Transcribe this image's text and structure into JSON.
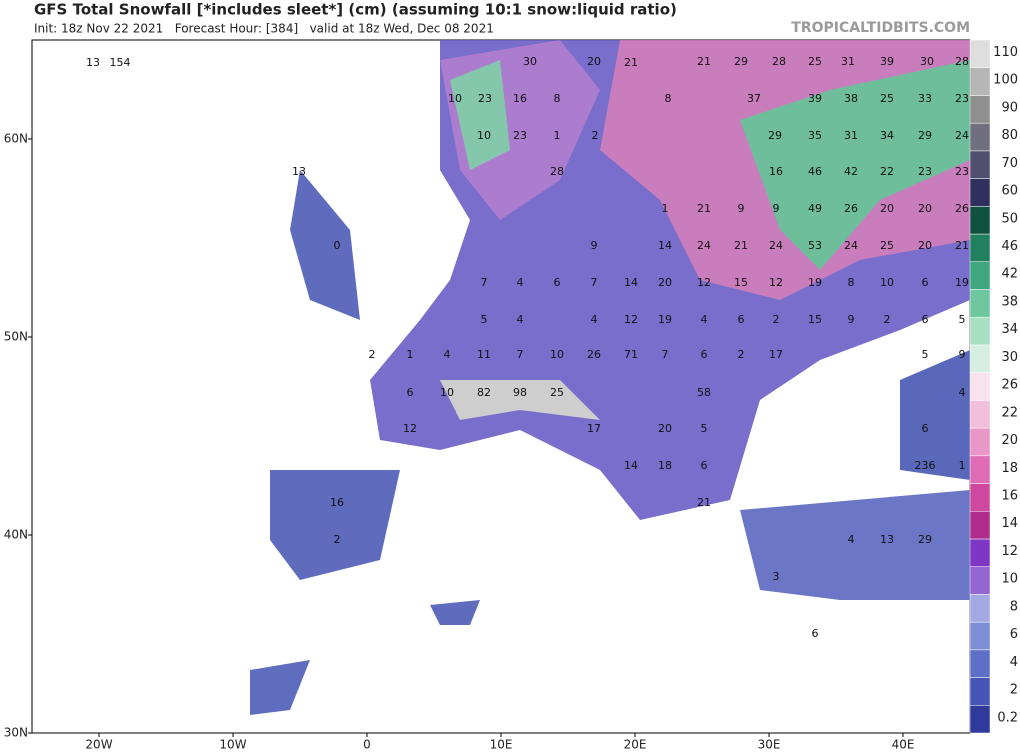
{
  "header": {
    "title": "GFS Total Snowfall [*includes sleet*] (cm) (assuming 10:1 snow:liquid ratio)",
    "subtitle": "Init: 18z Nov 22 2021   Forecast Hour: [384]   valid at 18z Wed, Dec 08 2021",
    "watermark": "TROPICALTIDBITS.COM"
  },
  "map": {
    "xlim": [
      -25,
      45
    ],
    "ylim": [
      30,
      65
    ],
    "xticks": [
      {
        "value": -20,
        "label": "20W"
      },
      {
        "value": -10,
        "label": "10W"
      },
      {
        "value": 0,
        "label": "0"
      },
      {
        "value": 10,
        "label": "10E"
      },
      {
        "value": 20,
        "label": "20E"
      },
      {
        "value": 30,
        "label": "30E"
      },
      {
        "value": 40,
        "label": "40E"
      }
    ],
    "yticks": [
      {
        "value": 30,
        "label": "30N"
      },
      {
        "value": 40,
        "label": "40N"
      },
      {
        "value": 50,
        "label": "50N"
      },
      {
        "value": 60,
        "label": "60N"
      }
    ],
    "labels": [
      "13",
      "154",
      "30",
      "20",
      "21",
      "21",
      "29",
      "28",
      "25",
      "31",
      "39",
      "30",
      "28",
      "10",
      "23",
      "16",
      "8",
      "8",
      "37",
      "39",
      "38",
      "25",
      "33",
      "23",
      "10",
      "23",
      "1",
      "2",
      "29",
      "35",
      "31",
      "34",
      "29",
      "24",
      "28",
      "16",
      "46",
      "42",
      "22",
      "23",
      "23",
      "13",
      "1",
      "21",
      "9",
      "9",
      "49",
      "26",
      "20",
      "20",
      "26",
      "9",
      "14",
      "24",
      "21",
      "24",
      "53",
      "24",
      "25",
      "20",
      "21",
      "0",
      "7",
      "4",
      "6",
      "7",
      "14",
      "20",
      "12",
      "15",
      "12",
      "19",
      "8",
      "10",
      "6",
      "19",
      "5",
      "4",
      "4",
      "12",
      "19",
      "4",
      "6",
      "2",
      "15",
      "9",
      "2",
      "6",
      "5",
      "2",
      "1",
      "4",
      "11",
      "7",
      "10",
      "26",
      "71",
      "7",
      "6",
      "2",
      "17",
      "5",
      "9",
      "6",
      "10",
      "82",
      "98",
      "25",
      "58",
      "4",
      "12",
      "17",
      "20",
      "5",
      "6",
      "14",
      "18",
      "6",
      "236",
      "1",
      "16",
      "21",
      "2",
      "4",
      "13",
      "29",
      "3",
      "6"
    ]
  },
  "colorbar": {
    "levels": [
      "0.2",
      "2",
      "4",
      "6",
      "8",
      "10",
      "12",
      "14",
      "16",
      "18",
      "20",
      "22",
      "26",
      "30",
      "34",
      "38",
      "42",
      "46",
      "50",
      "60",
      "70",
      "80",
      "90",
      "100",
      "110"
    ],
    "colors": [
      "#2f3a9c",
      "#4556b6",
      "#5d6fc6",
      "#7d8ed6",
      "#a2a8e2",
      "#9466d2",
      "#7f36c4",
      "#b02c8c",
      "#cf489f",
      "#df6db6",
      "#e996c8",
      "#f2bfdb",
      "#f9e1ee",
      "#d6efe2",
      "#a6dfc2",
      "#6ec79e",
      "#3fa77e",
      "#208060",
      "#10503f",
      "#2f305e",
      "#4f4f6e",
      "#6f6f7f",
      "#8f8f8f",
      "#b6b6b6",
      "#dedede"
    ]
  }
}
